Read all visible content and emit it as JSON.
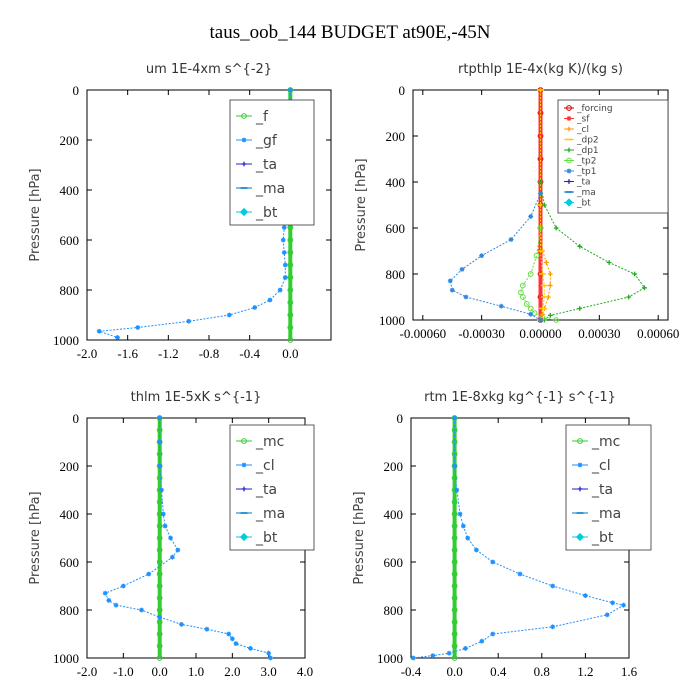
{
  "figure_title": "taus_oob_144  BUDGET at90E,-45N",
  "chart_data": [
    {
      "type": "line",
      "title": "um  1E-4xm s^{-2}",
      "ylabel": "Pressure [hPa]",
      "xlim": [
        -2.0,
        0.4
      ],
      "ylim": [
        1000,
        0
      ],
      "xticks": [
        "-2.0",
        "-1.6",
        "-1.2",
        "-0.8",
        "-0.4",
        "0.0"
      ],
      "xtick_values": [
        -2.0,
        -1.6,
        -1.2,
        -0.8,
        -0.4,
        0.0
      ],
      "yticks": [
        0,
        200,
        400,
        600,
        800,
        1000
      ],
      "legend_style": "large",
      "series": [
        {
          "name": "_f",
          "color": "#33cc33",
          "marker": "circle",
          "x": [
            0,
            0,
            0,
            0,
            0,
            0,
            0,
            0,
            0,
            0,
            0,
            0,
            0,
            0,
            0,
            0,
            0,
            0,
            0,
            0,
            0
          ],
          "y": [
            0,
            50,
            100,
            150,
            200,
            250,
            300,
            350,
            400,
            450,
            500,
            550,
            600,
            650,
            700,
            750,
            800,
            850,
            900,
            950,
            1000
          ]
        },
        {
          "name": "_gf",
          "color": "#1e90ff",
          "marker": "star",
          "x": [
            0,
            0,
            0,
            0,
            0,
            0,
            0,
            -0.02,
            -0.03,
            -0.04,
            -0.05,
            -0.06,
            -0.07,
            -0.06,
            -0.05,
            -0.05,
            -0.1,
            -0.2,
            -0.35,
            -0.6,
            -1.0,
            -1.5,
            -1.88,
            -1.7
          ],
          "y": [
            0,
            50,
            100,
            150,
            200,
            250,
            300,
            350,
            400,
            450,
            500,
            550,
            600,
            650,
            700,
            750,
            800,
            840,
            870,
            900,
            925,
            950,
            965,
            990
          ]
        },
        {
          "name": "_ta",
          "color": "#2222cc",
          "marker": "plus",
          "x": [],
          "y": []
        },
        {
          "name": "_ma",
          "color": "#0077cc",
          "marker": "dash",
          "x": [],
          "y": []
        },
        {
          "name": "_bt",
          "color": "#00ccdd",
          "marker": "diamond",
          "x": [],
          "y": []
        }
      ]
    },
    {
      "type": "line",
      "title": "rtpthlp  1E-4x(kg K)/(kg s)",
      "ylabel": "Pressure [hPa]",
      "xlim": [
        -0.00065,
        0.00065
      ],
      "ylim": [
        1000,
        0
      ],
      "xticks": [
        "-0.00060",
        "-0.00030",
        "0.00000",
        "0.00030",
        "0.00060"
      ],
      "xtick_values": [
        -0.0006,
        -0.0003,
        0.0,
        0.0003,
        0.0006
      ],
      "yticks": [
        0,
        200,
        400,
        600,
        800,
        1000
      ],
      "legend_style": "small",
      "series": [
        {
          "name": "_forcing",
          "color": "#cc0000",
          "marker": "circle",
          "x": [
            0,
            0,
            0,
            0,
            0,
            0,
            0,
            0,
            0,
            0,
            0
          ],
          "y": [
            0,
            100,
            200,
            300,
            400,
            500,
            600,
            700,
            800,
            900,
            1000
          ]
        },
        {
          "name": "_sf",
          "color": "#ff3333",
          "marker": "star",
          "x": [
            0,
            0,
            0,
            0,
            0,
            0
          ],
          "y": [
            0,
            200,
            400,
            600,
            800,
            1000
          ]
        },
        {
          "name": "_cl",
          "color": "#ff9900",
          "marker": "plus",
          "x": [
            0,
            0,
            0,
            1e-05,
            3e-05,
            5e-05,
            5e-05,
            4e-05,
            2e-05,
            1e-05,
            0
          ],
          "y": [
            0,
            400,
            600,
            700,
            750,
            800,
            850,
            900,
            950,
            975,
            1000
          ]
        },
        {
          "name": "_dp2",
          "color": "#ffcc00",
          "marker": "dash",
          "x": [
            0,
            0,
            0,
            1e-05,
            2e-05,
            2e-05,
            1e-05,
            0
          ],
          "y": [
            0,
            500,
            700,
            800,
            850,
            900,
            950,
            1000
          ]
        },
        {
          "name": "_dp1",
          "color": "#22aa22",
          "marker": "plus",
          "x": [
            0,
            2e-05,
            8e-05,
            0.0002,
            0.00035,
            0.00048,
            0.00053,
            0.00045,
            0.0002,
            5e-05,
            2e-05
          ],
          "y": [
            400,
            500,
            600,
            680,
            750,
            800,
            860,
            900,
            950,
            980,
            1000
          ]
        },
        {
          "name": "_tp2",
          "color": "#66dd44",
          "marker": "circle",
          "x": [
            0,
            -2e-05,
            -5e-05,
            -9e-05,
            -0.0001,
            -9e-05,
            -7e-05,
            -5e-05,
            -3e-05,
            1e-05,
            8e-05
          ],
          "y": [
            600,
            720,
            800,
            850,
            880,
            900,
            930,
            950,
            970,
            990,
            1000
          ]
        },
        {
          "name": "_tp1",
          "color": "#3388dd",
          "marker": "star",
          "x": [
            0,
            -5e-05,
            -0.00015,
            -0.0003,
            -0.0004,
            -0.00046,
            -0.00045,
            -0.00038,
            -0.0002,
            -5e-05,
            0
          ],
          "y": [
            450,
            550,
            650,
            720,
            780,
            830,
            870,
            900,
            940,
            975,
            1000
          ]
        },
        {
          "name": "_ta",
          "color": "#2222cc",
          "marker": "plus",
          "x": [],
          "y": []
        },
        {
          "name": "_ma",
          "color": "#0077cc",
          "marker": "dash",
          "x": [],
          "y": []
        },
        {
          "name": "_bt",
          "color": "#00ccdd",
          "marker": "diamond",
          "x": [],
          "y": []
        }
      ]
    },
    {
      "type": "line",
      "title": "thlm  1E-5xK s^{-1}",
      "ylabel": "Pressure [hPa]",
      "xlim": [
        -2.0,
        4.0
      ],
      "ylim": [
        1000,
        0
      ],
      "xticks": [
        "-2.0",
        "-1.0",
        "0.0",
        "1.0",
        "2.0",
        "3.0",
        "4.0"
      ],
      "xtick_values": [
        -2.0,
        -1.0,
        0.0,
        1.0,
        2.0,
        3.0,
        4.0
      ],
      "yticks": [
        0,
        200,
        400,
        600,
        800,
        1000
      ],
      "legend_style": "large",
      "series": [
        {
          "name": "_mc",
          "color": "#33cc33",
          "marker": "circle",
          "x": [
            0,
            0,
            0,
            0,
            0,
            0,
            0,
            0,
            0,
            0,
            0,
            0,
            0,
            0,
            0,
            0,
            0,
            0,
            0,
            0,
            0
          ],
          "y": [
            0,
            50,
            100,
            150,
            200,
            250,
            300,
            350,
            400,
            450,
            500,
            550,
            600,
            650,
            700,
            750,
            800,
            850,
            900,
            950,
            1000
          ]
        },
        {
          "name": "_cl",
          "color": "#1e90ff",
          "marker": "star",
          "x": [
            0,
            0,
            0,
            0.05,
            0.1,
            0.15,
            0.3,
            0.5,
            0.35,
            -0.3,
            -1.0,
            -1.5,
            -1.4,
            -1.2,
            -0.5,
            0.0,
            0.6,
            1.3,
            1.9,
            2.0,
            2.1,
            2.5,
            3.0,
            3.05
          ],
          "y": [
            0,
            100,
            200,
            300,
            400,
            450,
            500,
            550,
            580,
            650,
            700,
            730,
            760,
            780,
            800,
            830,
            860,
            880,
            900,
            920,
            940,
            960,
            980,
            1000
          ]
        },
        {
          "name": "_ta",
          "color": "#2222cc",
          "marker": "plus",
          "x": [],
          "y": []
        },
        {
          "name": "_ma",
          "color": "#0077cc",
          "marker": "dash",
          "x": [],
          "y": []
        },
        {
          "name": "_bt",
          "color": "#00ccdd",
          "marker": "diamond",
          "x": [],
          "y": []
        }
      ]
    },
    {
      "type": "line",
      "title": "rtm  1E-8xkg kg^{-1} s^{-1}",
      "ylabel": "Pressure [hPa]",
      "xlim": [
        -0.4,
        1.6
      ],
      "ylim": [
        1000,
        0
      ],
      "xticks": [
        "-0.4",
        "0.0",
        "0.4",
        "0.8",
        "1.2",
        "1.6"
      ],
      "xtick_values": [
        -0.4,
        0.0,
        0.4,
        0.8,
        1.2,
        1.6
      ],
      "yticks": [
        0,
        200,
        400,
        600,
        800,
        1000
      ],
      "legend_style": "large",
      "series": [
        {
          "name": "_mc",
          "color": "#33cc33",
          "marker": "circle",
          "x": [
            0,
            0,
            0,
            0,
            0,
            0,
            0,
            0,
            0,
            0,
            0,
            0,
            0,
            0,
            0,
            0,
            0,
            0,
            0,
            0,
            0
          ],
          "y": [
            0,
            50,
            100,
            150,
            200,
            250,
            300,
            350,
            400,
            450,
            500,
            550,
            600,
            650,
            700,
            750,
            800,
            850,
            900,
            950,
            1000
          ]
        },
        {
          "name": "_cl",
          "color": "#1e90ff",
          "marker": "star",
          "x": [
            0,
            0,
            0.02,
            0.05,
            0.08,
            0.12,
            0.2,
            0.35,
            0.6,
            0.9,
            1.2,
            1.45,
            1.55,
            1.4,
            0.9,
            0.35,
            0.25,
            0.1,
            -0.05,
            -0.2,
            -0.38
          ],
          "y": [
            0,
            200,
            300,
            400,
            450,
            500,
            550,
            600,
            650,
            700,
            740,
            770,
            780,
            820,
            870,
            900,
            930,
            960,
            980,
            990,
            1000
          ]
        },
        {
          "name": "_ta",
          "color": "#2222cc",
          "marker": "plus",
          "x": [],
          "y": []
        },
        {
          "name": "_ma",
          "color": "#0077cc",
          "marker": "dash",
          "x": [],
          "y": []
        },
        {
          "name": "_bt",
          "color": "#00ccdd",
          "marker": "diamond",
          "x": [],
          "y": []
        }
      ]
    }
  ]
}
